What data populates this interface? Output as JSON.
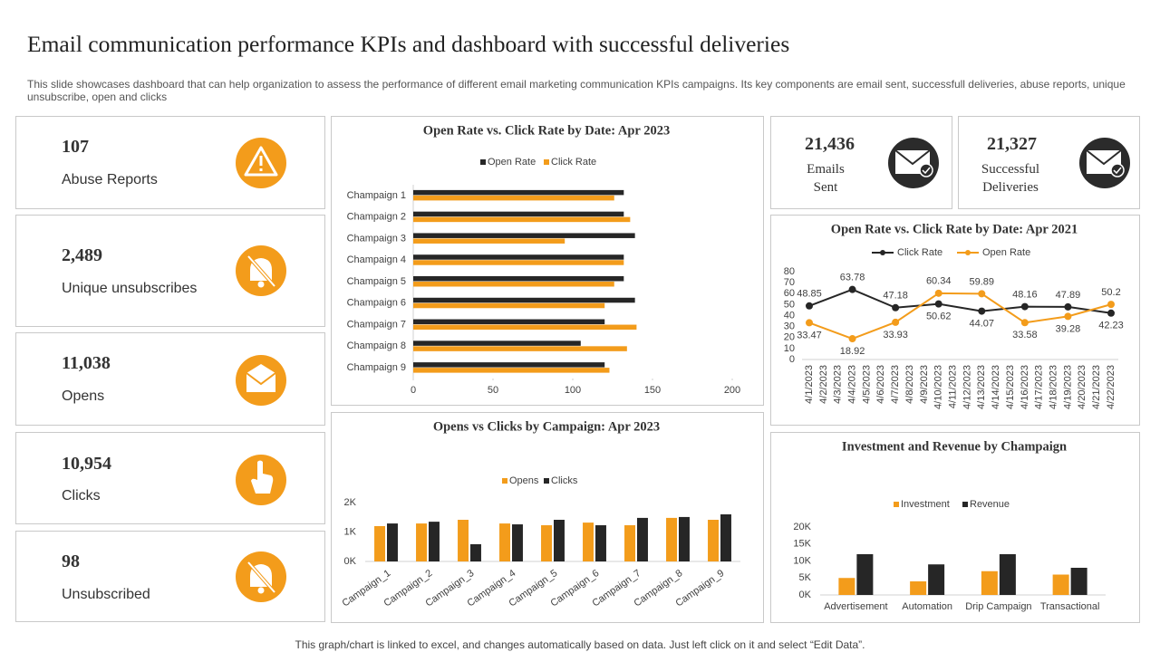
{
  "title": "Email communication performance KPIs and dashboard with successful deliveries",
  "description": "This slide showcases dashboard that can help organization to assess the performance of different email marketing communication KPIs campaigns. Its key components are email sent, successfull deliveries, abuse reports, unique unsubscribe, open and clicks",
  "footer": "This graph/chart is linked to excel,  and changes automatically based on data. Just left click on it and select “Edit Data”.",
  "kpis": [
    {
      "value": "107",
      "label": "Abuse Reports"
    },
    {
      "value": "2,489",
      "label": "Unique unsubscribes"
    },
    {
      "value": "11,038",
      "label": "Opens"
    },
    {
      "value": "10,954",
      "label": "Clicks"
    },
    {
      "value": "98",
      "label": "Unsubscribed"
    },
    {
      "value": "21,436",
      "label": "Emails Sent"
    },
    {
      "value": "21,327",
      "label": "Successful Deliveries"
    }
  ],
  "chart_data": [
    {
      "type": "bar",
      "horizontal": true,
      "title": "Open Rate vs. Click Rate by Date: Apr 2023",
      "categories": [
        "Champaign 1",
        "Champaign 2",
        "Champaign 3",
        "Champaign 4",
        "Champaign 5",
        "Champaign 6",
        "Champaign 7",
        "Champaign 8",
        "Champaign 9"
      ],
      "series": [
        {
          "name": "Open Rate",
          "color": "#262626",
          "values": [
            132,
            132,
            139,
            132,
            132,
            139,
            120,
            105,
            120
          ]
        },
        {
          "name": "Click Rate",
          "color": "#f39c1b",
          "values": [
            126,
            136,
            95,
            132,
            126,
            120,
            140,
            134,
            123
          ]
        }
      ],
      "xlim": [
        0,
        200
      ],
      "xticks": [
        0,
        50,
        100,
        150,
        200
      ]
    },
    {
      "type": "bar",
      "title": "Opens vs Clicks by Campaign: Apr 2023",
      "categories": [
        "Campaign_1",
        "Campaign_2",
        "Campaign_3",
        "Campaign_4",
        "Campaign_5",
        "Campaign_6",
        "Campaign_7",
        "Campaign_8",
        "Campaign_9"
      ],
      "series": [
        {
          "name": "Opens",
          "color": "#f39c1b",
          "values": [
            1200,
            1290,
            1415,
            1290,
            1230,
            1320,
            1230,
            1480,
            1415
          ]
        },
        {
          "name": "Clicks",
          "color": "#262626",
          "values": [
            1290,
            1350,
            585,
            1260,
            1415,
            1230,
            1480,
            1510,
            1600
          ]
        }
      ],
      "ylim": [
        0,
        2000
      ],
      "yticks": [
        {
          "value": 0,
          "label": "0K"
        },
        {
          "value": 1000,
          "label": "1K"
        },
        {
          "value": 2000,
          "label": "2K"
        }
      ]
    },
    {
      "type": "line",
      "title": "Open Rate vs. Click Rate by Date: Apr 2021",
      "categories": [
        "4/1/2023",
        "4/2/2023",
        "4/3/2023",
        "4/4/2023",
        "4/5/2023",
        "4/6/2023",
        "4/7/2023",
        "4/8/2023",
        "4/9/2023",
        "4/10/2023",
        "4/11/2023",
        "4/12/2023",
        "4/13/2023",
        "4/14/2023",
        "4/15/2023",
        "4/16/2023",
        "4/17/2023",
        "4/18/2023",
        "4/19/2023",
        "4/20/2023",
        "4/21/2023",
        "4/22/2023"
      ],
      "series": [
        {
          "name": "Click Rate",
          "color": "#262626",
          "x": [
            "4/1/2023",
            "4/4/2023",
            "4/7/2023",
            "4/10/2023",
            "4/13/2023",
            "4/16/2023",
            "4/19/2023",
            "4/22/2023"
          ],
          "values": [
            48.85,
            63.78,
            47.18,
            50.62,
            44.07,
            48.16,
            47.89,
            42.23
          ]
        },
        {
          "name": "Open Rate",
          "color": "#f39c1b",
          "x": [
            "4/1/2023",
            "4/4/2023",
            "4/7/2023",
            "4/10/2023",
            "4/13/2023",
            "4/16/2023",
            "4/19/2023",
            "4/22/2023"
          ],
          "values": [
            33.47,
            18.92,
            33.93,
            60.34,
            59.89,
            33.58,
            39.28,
            50.2
          ]
        }
      ],
      "ylim": [
        0,
        80
      ],
      "yticks": [
        0,
        10,
        20,
        30,
        40,
        50,
        60,
        70,
        80
      ]
    },
    {
      "type": "bar",
      "title": "Investment and Revenue by Champaign",
      "categories": [
        "Advertisement",
        "Automation",
        "Drip Campaign",
        "Transactional"
      ],
      "series": [
        {
          "name": "Investment",
          "color": "#f39c1b",
          "values": [
            5000,
            4000,
            7000,
            6000
          ]
        },
        {
          "name": "Revenue",
          "color": "#262626",
          "values": [
            12000,
            9000,
            12000,
            8000
          ]
        }
      ],
      "ylim": [
        0,
        20000
      ],
      "yticks": [
        {
          "value": 0,
          "label": "0K"
        },
        {
          "value": 5000,
          "label": "5K"
        },
        {
          "value": 10000,
          "label": "10K"
        },
        {
          "value": 15000,
          "label": "15K"
        },
        {
          "value": 20000,
          "label": "20K"
        }
      ]
    }
  ]
}
